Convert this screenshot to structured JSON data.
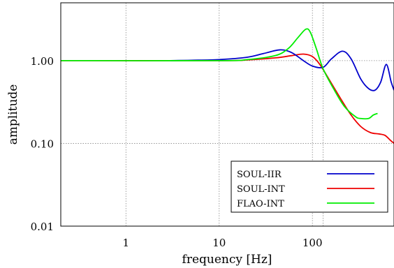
{
  "chart_data": {
    "type": "line",
    "title": "",
    "xlabel": "frequency [Hz]",
    "ylabel": "amplitude",
    "x_scale": "log",
    "y_scale": "log",
    "xlim": [
      0.2,
      750
    ],
    "ylim": [
      0.01,
      5
    ],
    "x_ticks": [
      {
        "value": 1,
        "label": "1"
      },
      {
        "value": 10,
        "label": "10"
      },
      {
        "value": 100,
        "label": "100"
      }
    ],
    "y_ticks": [
      {
        "value": 0.01,
        "label": "0.01"
      },
      {
        "value": 0.1,
        "label": "0.10"
      },
      {
        "value": 1,
        "label": "1.00"
      }
    ],
    "grid": true,
    "extra_vertical_gridline": 130,
    "legend_position": "bottom-right",
    "series": [
      {
        "name": "SOUL-IIR",
        "color": "#0000cc",
        "points": [
          [
            3,
            1.0
          ],
          [
            5,
            1.01
          ],
          [
            10,
            1.03
          ],
          [
            20,
            1.1
          ],
          [
            30,
            1.22
          ],
          [
            45,
            1.35
          ],
          [
            60,
            1.25
          ],
          [
            80,
            1.0
          ],
          [
            100,
            0.86
          ],
          [
            130,
            0.83
          ],
          [
            160,
            1.05
          ],
          [
            210,
            1.3
          ],
          [
            260,
            1.05
          ],
          [
            330,
            0.6
          ],
          [
            400,
            0.46
          ],
          [
            470,
            0.44
          ],
          [
            540,
            0.55
          ],
          [
            620,
            0.9
          ],
          [
            700,
            0.55
          ],
          [
            750,
            0.44
          ]
        ]
      },
      {
        "name": "SOUL-INT",
        "color": "#ee0000",
        "points": [
          [
            0.2,
            1.0
          ],
          [
            10,
            1.0
          ],
          [
            20,
            1.02
          ],
          [
            40,
            1.08
          ],
          [
            60,
            1.15
          ],
          [
            80,
            1.2
          ],
          [
            100,
            1.12
          ],
          [
            120,
            0.9
          ],
          [
            150,
            0.6
          ],
          [
            200,
            0.35
          ],
          [
            260,
            0.22
          ],
          [
            330,
            0.16
          ],
          [
            420,
            0.135
          ],
          [
            520,
            0.13
          ],
          [
            600,
            0.125
          ],
          [
            680,
            0.11
          ],
          [
            750,
            0.1
          ]
        ]
      },
      {
        "name": "FLAO-INT",
        "color": "#00ee00",
        "points": [
          [
            0.2,
            1.0
          ],
          [
            10,
            1.0
          ],
          [
            20,
            1.03
          ],
          [
            40,
            1.15
          ],
          [
            55,
            1.4
          ],
          [
            70,
            1.9
          ],
          [
            85,
            2.4
          ],
          [
            95,
            2.2
          ],
          [
            110,
            1.4
          ],
          [
            130,
            0.8
          ],
          [
            170,
            0.45
          ],
          [
            220,
            0.28
          ],
          [
            290,
            0.21
          ],
          [
            330,
            0.2
          ],
          [
            400,
            0.2
          ],
          [
            450,
            0.22
          ],
          [
            500,
            0.23
          ]
        ]
      }
    ]
  }
}
